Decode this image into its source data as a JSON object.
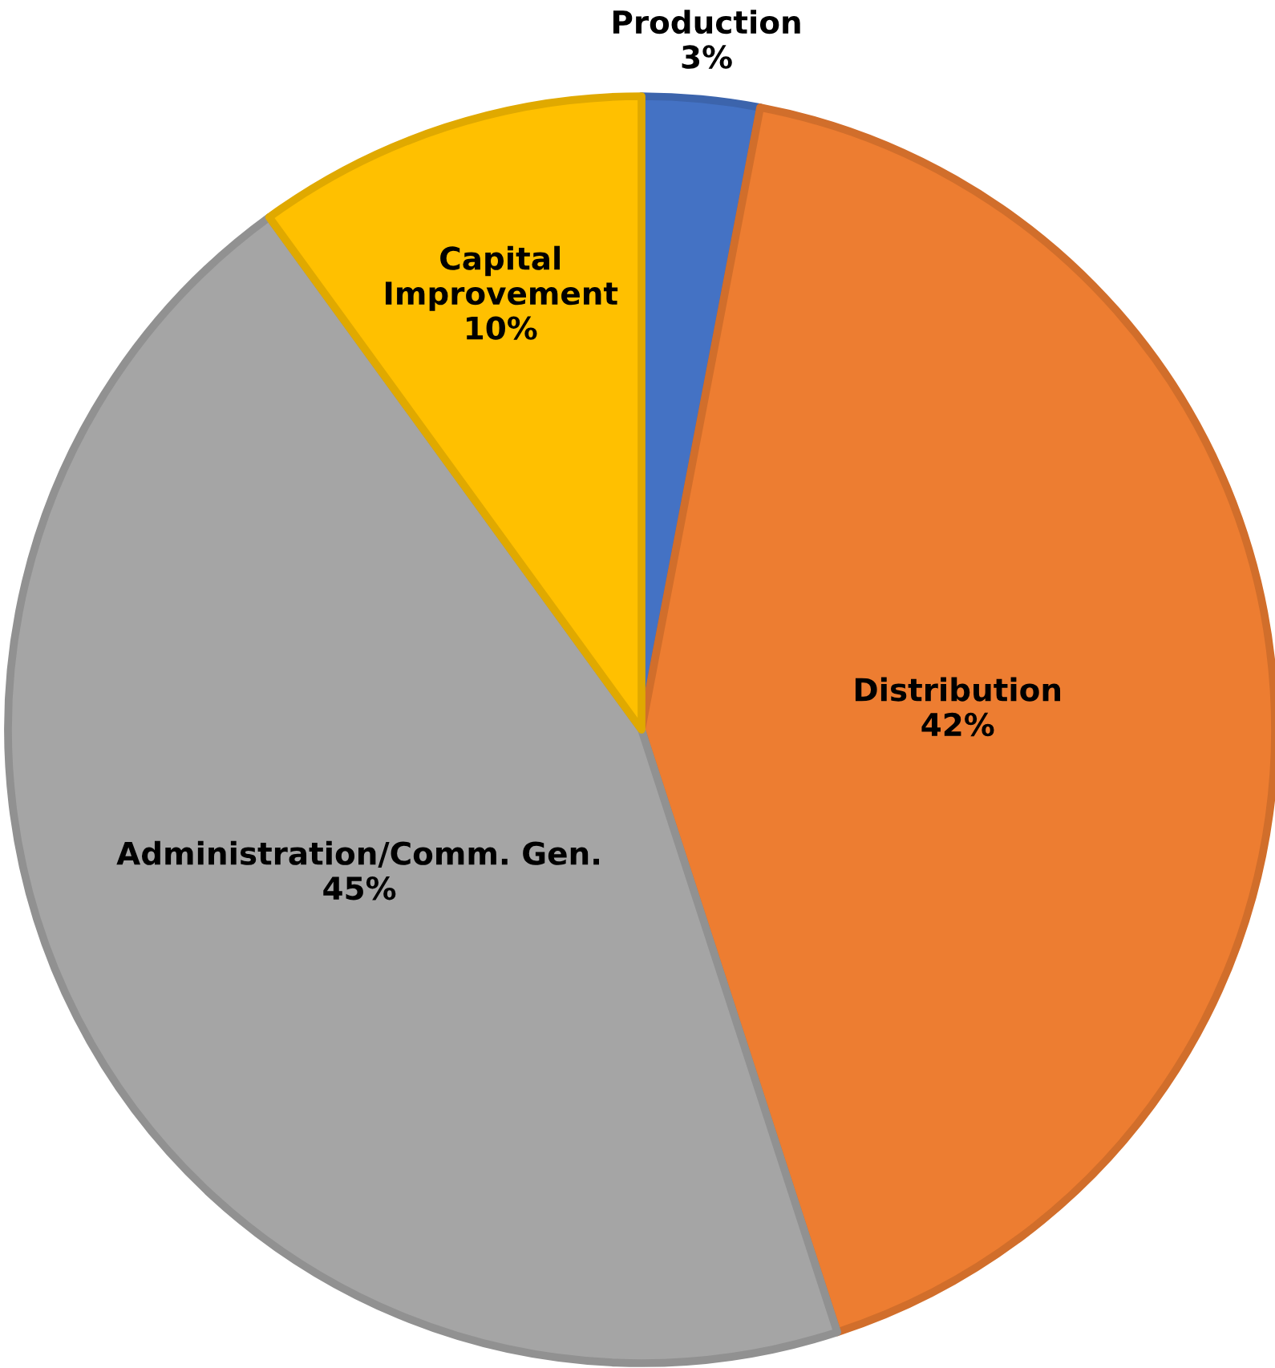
{
  "chart_data": {
    "type": "pie",
    "categories": [
      "Production",
      "Distribution",
      "Administration/Comm. Gen.",
      "Capital\nImprovement"
    ],
    "values": [
      3,
      42,
      45,
      10
    ],
    "value_labels": [
      "3%",
      "42%",
      "45%",
      "10%"
    ],
    "colors": [
      "#4472c4",
      "#ed7d31",
      "#a5a5a5",
      "#ffc000"
    ],
    "legend": false
  }
}
